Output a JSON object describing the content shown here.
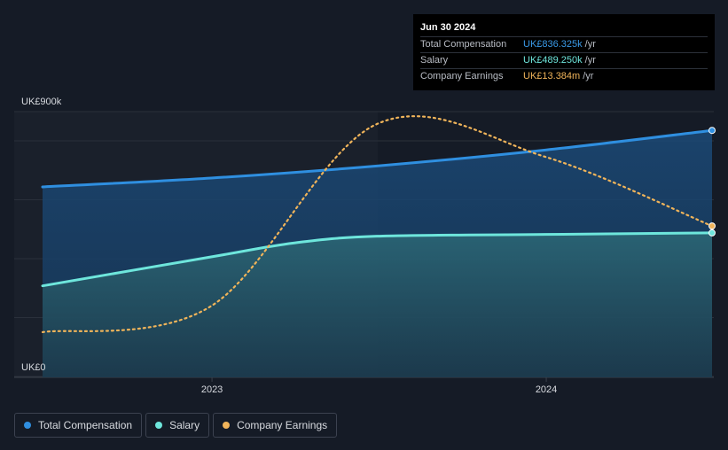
{
  "tooltip": {
    "date": "Jun 30 2024",
    "rows": [
      {
        "label": "Total Compensation",
        "value": "UK£836.325k",
        "unit": "/yr",
        "color": "#3a9ae8"
      },
      {
        "label": "Salary",
        "value": "UK£489.250k",
        "unit": "/yr",
        "color": "#6ee6dc"
      },
      {
        "label": "Company Earnings",
        "value": "UK£13.384m",
        "unit": "/yr",
        "color": "#f0b45a"
      }
    ]
  },
  "legend": [
    {
      "label": "Total Compensation",
      "color": "#2f8fe0"
    },
    {
      "label": "Salary",
      "color": "#6ee6dc"
    },
    {
      "label": "Company Earnings",
      "color": "#f0b45a"
    }
  ],
  "chart_data": {
    "type": "area",
    "y_axis_labels": [
      "UK£900k",
      "UK£0"
    ],
    "ylim": [
      0,
      900
    ],
    "x_tick_labels": [
      {
        "label": "2023",
        "date": "2023-01-01"
      },
      {
        "label": "2024",
        "date": "2024-01-01"
      }
    ],
    "grid": true,
    "legend_position": "bottom-left",
    "series": [
      {
        "name": "Total Compensation",
        "color": "#2f8fe0",
        "unit": "UK£k",
        "points": [
          {
            "date": "2022-06-30",
            "value": 645
          },
          {
            "date": "2022-12-31",
            "value": 675
          },
          {
            "date": "2023-06-30",
            "value": 716
          },
          {
            "date": "2023-12-31",
            "value": 770
          },
          {
            "date": "2024-06-30",
            "value": 836.325
          }
        ]
      },
      {
        "name": "Salary",
        "color": "#6ee6dc",
        "unit": "UK£k",
        "points": [
          {
            "date": "2022-06-30",
            "value": 310
          },
          {
            "date": "2022-12-31",
            "value": 408
          },
          {
            "date": "2023-03-31",
            "value": 455
          },
          {
            "date": "2023-06-30",
            "value": 478
          },
          {
            "date": "2023-12-31",
            "value": 484
          },
          {
            "date": "2024-06-30",
            "value": 489.25
          }
        ]
      },
      {
        "name": "Company Earnings",
        "color": "#f0b45a",
        "style": "dotted",
        "unit": "UK£m",
        "ylim": [
          0,
          23.5
        ],
        "points": [
          {
            "date": "2022-06-30",
            "value": 4.0
          },
          {
            "date": "2022-12-31",
            "value": 6.3
          },
          {
            "date": "2023-06-30",
            "value": 22.4
          },
          {
            "date": "2023-12-31",
            "value": 19.5
          },
          {
            "date": "2024-06-30",
            "value": 13.384
          }
        ]
      }
    ]
  }
}
